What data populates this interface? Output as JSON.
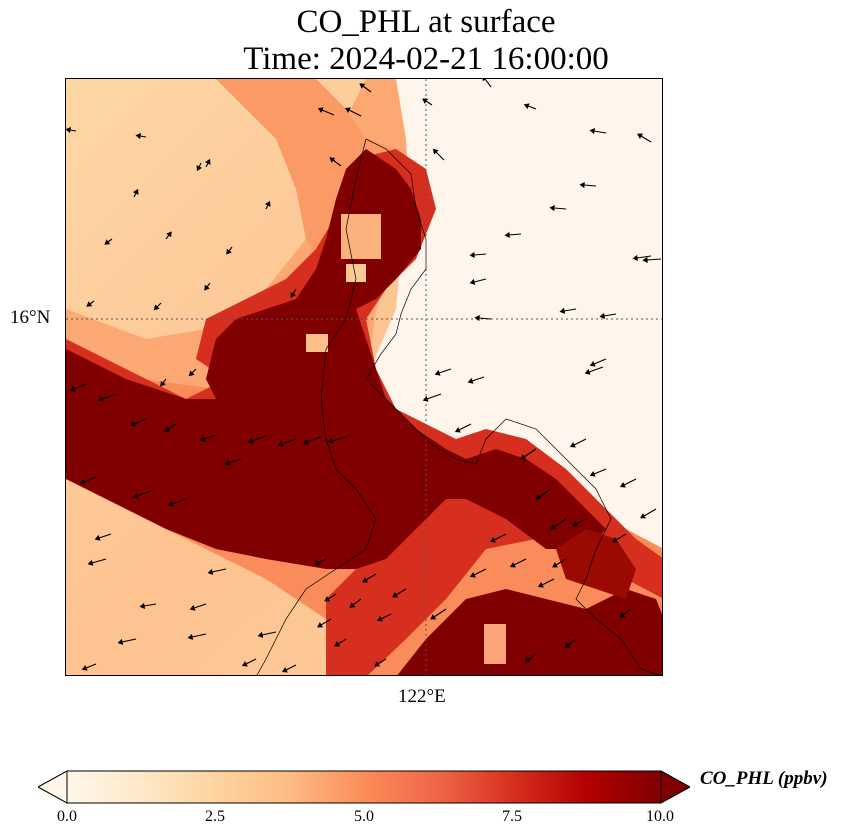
{
  "title": {
    "line1": "CO_PHL at surface",
    "line2": "Time: 2024-02-21 16:00:00"
  },
  "map": {
    "lat_label": "16°N",
    "lon_label": "122°E",
    "gridline_style": "dotted",
    "background_color": "#fff5ea",
    "plume_core_color": "#7f0000",
    "vector_arrows": "black wind arrows over domain",
    "coastline_color": "#000000"
  },
  "colorbar": {
    "label": "CO_PHL (ppbv)",
    "ticks": [
      "0.0",
      "2.5",
      "5.0",
      "7.5",
      "10.0"
    ],
    "min": 0.0,
    "max": 10.0,
    "extend": "both",
    "colormap": [
      "#fff7ec",
      "#fee8c8",
      "#fdd49e",
      "#fdbb84",
      "#fc8d59",
      "#ef6548",
      "#d7301f",
      "#b30000",
      "#7f0000"
    ]
  }
}
